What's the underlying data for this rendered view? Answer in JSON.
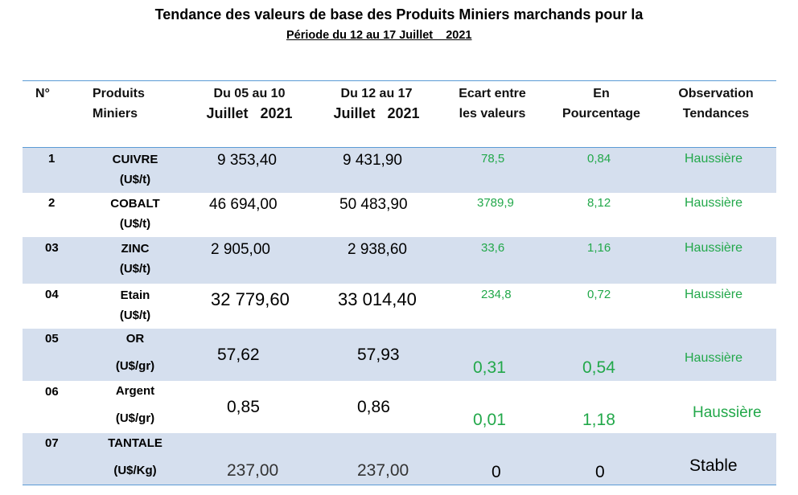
{
  "title": "Tendance des valeurs de base des Produits Miniers marchands pour la",
  "subtitle": "Période du 12 au 17 Juillet    2021",
  "headers": {
    "num": "N°",
    "produits": [
      "Produits",
      "Miniers"
    ],
    "du05": [
      "Du 05 au 10",
      "Juillet   2021"
    ],
    "du12": [
      "Du 12 au 17",
      "Juillet   2021"
    ],
    "ecart": [
      "Ecart entre",
      "les valeurs"
    ],
    "pct": [
      "En",
      "Pourcentage"
    ],
    "obs": [
      "Observation",
      "Tendances"
    ]
  },
  "rows": [
    {
      "num": "1",
      "name": "CUIVRE",
      "unit": "(U$/t)",
      "v1": "9 353,40",
      "v2": "9 431,90",
      "ecart": "78,5",
      "pct": "0,84",
      "obs": "Haussière"
    },
    {
      "num": "2",
      "name": "COBALT",
      "unit": "(U$/t)",
      "v1": "46 694,00",
      "v2": "50 483,90",
      "ecart": "3789,9",
      "pct": "8,12",
      "obs": "Haussière"
    },
    {
      "num": "03",
      "name": "ZINC",
      "unit": "(U$/t)",
      "v1": "2 905,00",
      "v2": "2 938,60",
      "ecart": "33,6",
      "pct": "1,16",
      "obs": "Haussière"
    },
    {
      "num": "04",
      "name": "Etain",
      "unit": "(U$/t)",
      "v1": "32 779,60",
      "v2": "33 014,40",
      "ecart": "234,8",
      "pct": "0,72",
      "obs": "Haussière"
    },
    {
      "num": "05",
      "name": "OR",
      "unit": "(U$/gr)",
      "v1": "57,62",
      "v2": "57,93",
      "ecart": "0,31",
      "pct": "0,54",
      "obs": "Haussière"
    },
    {
      "num": "06",
      "name": "Argent",
      "unit": "(U$/gr)",
      "v1": "0,85",
      "v2": "0,86",
      "ecart": "0,01",
      "pct": "1,18",
      "obs": "Haussière"
    },
    {
      "num": "07",
      "name": "TANTALE",
      "unit": "(U$/Kg)",
      "v1": "237,00",
      "v2": "237,00",
      "ecart": "0",
      "pct": "0",
      "obs": "Stable"
    }
  ]
}
